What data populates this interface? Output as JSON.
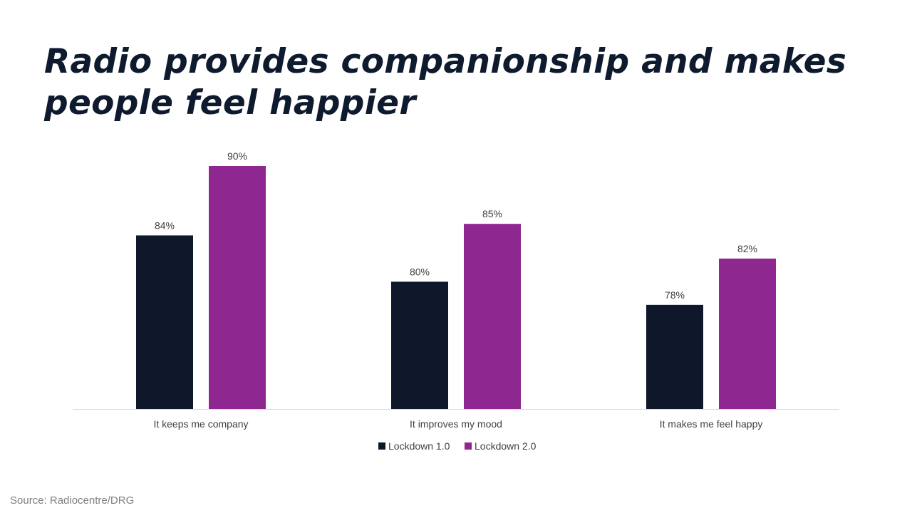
{
  "title": "Radio provides companionship and makes people feel happier",
  "source": "Source: Radiocentre/DRG",
  "colors": {
    "title": "#0e1a2e",
    "series1": "#0f172b",
    "series2": "#8e278f",
    "axis": "#d9d9d9"
  },
  "chart_data": {
    "type": "bar",
    "categories": [
      "It keeps me company",
      "It improves my mood",
      "It makes me feel happy"
    ],
    "series": [
      {
        "name": "Lockdown 1.0",
        "values": [
          84,
          80,
          78
        ],
        "labels": [
          "84%",
          "80%",
          "78%"
        ]
      },
      {
        "name": "Lockdown 2.0",
        "values": [
          90,
          85,
          82
        ],
        "labels": [
          "90%",
          "85%",
          "82%"
        ]
      }
    ],
    "ylim": [
      69,
      90
    ],
    "legend": "bottom-center",
    "grid": false
  }
}
